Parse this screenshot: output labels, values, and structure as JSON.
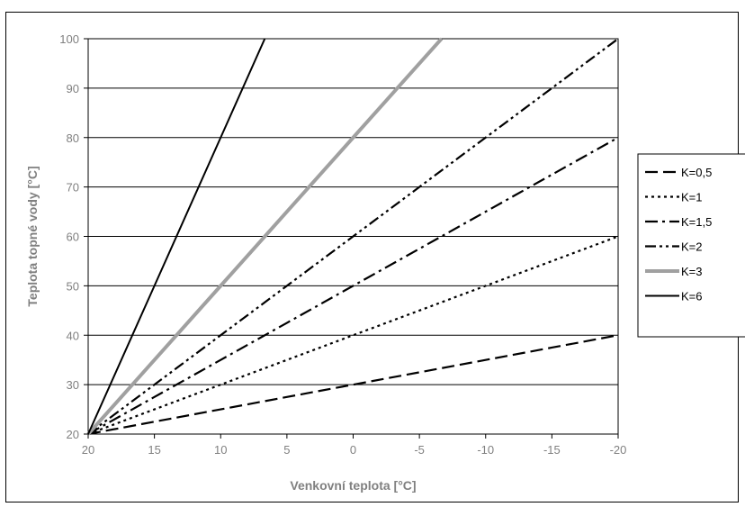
{
  "chart_data": {
    "type": "line",
    "title": "",
    "xlabel": "Venkovní teplota [°C]",
    "ylabel": "Teplota topné vody [°C]",
    "xlim": [
      20,
      -20
    ],
    "ylim": [
      20,
      100
    ],
    "x_ticks": [
      20,
      15,
      10,
      5,
      0,
      -5,
      -10,
      -15,
      -20
    ],
    "x_tick_labels": [
      "20",
      "15",
      "10",
      "5",
      "0",
      "-5",
      "-10",
      "-15",
      "-20"
    ],
    "y_ticks": [
      20,
      30,
      40,
      50,
      60,
      70,
      80,
      90,
      100
    ],
    "y_tick_labels": [
      "20",
      "30",
      "40",
      "50",
      "60",
      "70",
      "80",
      "90",
      "100"
    ],
    "grid": "horizontal",
    "legend_position": "right",
    "series": [
      {
        "name": "K=0,5",
        "x": [
          20,
          15,
          10,
          5,
          0,
          -5,
          -10,
          -15,
          -20
        ],
        "y": [
          20,
          22.5,
          25,
          27.5,
          30,
          32.5,
          35,
          37.5,
          40
        ],
        "color": "#000000",
        "style": "long-dash"
      },
      {
        "name": "K=1",
        "x": [
          20,
          15,
          10,
          5,
          0,
          -5,
          -10,
          -15,
          -20
        ],
        "y": [
          20,
          25,
          30,
          35,
          40,
          45,
          50,
          55,
          60
        ],
        "color": "#000000",
        "style": "dot"
      },
      {
        "name": "K=1,5",
        "x": [
          20,
          15,
          10,
          5,
          0,
          -5,
          -10,
          -15,
          -20
        ],
        "y": [
          20,
          27.5,
          35,
          42.5,
          50,
          57.5,
          65,
          72.5,
          80
        ],
        "color": "#000000",
        "style": "dash-dot"
      },
      {
        "name": "K=2",
        "x": [
          20,
          15,
          10,
          5,
          0,
          -5,
          -10,
          -15,
          -20
        ],
        "y": [
          20,
          30,
          40,
          50,
          60,
          70,
          80,
          90,
          100
        ],
        "color": "#000000",
        "style": "dash-dot-dot"
      },
      {
        "name": "K=3",
        "x": [
          20,
          15,
          10,
          5,
          0,
          -5,
          -6.67
        ],
        "y": [
          20,
          35,
          50,
          65,
          80,
          95,
          100
        ],
        "color": "#a0a0a0",
        "style": "thick-gray"
      },
      {
        "name": "K=6",
        "x": [
          20,
          15,
          10,
          6.67
        ],
        "y": [
          20,
          50,
          80,
          100
        ],
        "color": "#000000",
        "style": "solid"
      }
    ]
  }
}
